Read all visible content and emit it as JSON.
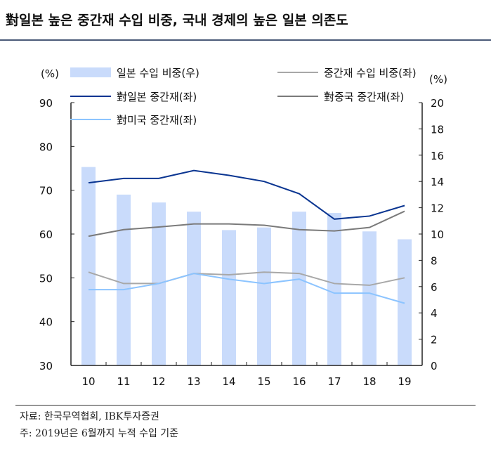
{
  "title": "對일본 높은 중간재 수입 비중, 국내 경제의 높은 일본 의존도",
  "notes": {
    "source": "자료: 한국무역협회, IBK투자증권",
    "footnote": "주: 2019년은 6월까지 누적 수입 기준"
  },
  "chart_data": {
    "type": "bar+line",
    "categories": [
      "10",
      "11",
      "12",
      "13",
      "14",
      "15",
      "16",
      "17",
      "18",
      "19"
    ],
    "left_axis": {
      "unit": "(%)",
      "range": [
        30,
        90
      ],
      "ticks": [
        30,
        40,
        50,
        60,
        70,
        80,
        90
      ]
    },
    "right_axis": {
      "unit": "(%)",
      "range": [
        0,
        20
      ],
      "ticks": [
        0,
        2,
        4,
        6,
        8,
        10,
        12,
        14,
        16,
        18,
        20
      ]
    },
    "series": [
      {
        "name": "일본 수입 비중(우)",
        "type": "bar",
        "axis": "right",
        "color": "#c9dbfb",
        "values": [
          15.1,
          13.0,
          12.4,
          11.7,
          10.3,
          10.5,
          11.7,
          11.6,
          10.2,
          9.6
        ]
      },
      {
        "name": "중간재 수입 비중(좌)",
        "type": "line",
        "axis": "left",
        "color": "#a8a8a8",
        "values": [
          51.3,
          48.7,
          48.7,
          51.0,
          50.7,
          51.3,
          51.0,
          48.7,
          48.3,
          50.0
        ]
      },
      {
        "name": "對일본 중간재(좌)",
        "type": "line",
        "axis": "left",
        "color": "#0a3591",
        "values": [
          71.7,
          72.7,
          72.7,
          74.5,
          73.4,
          72.0,
          69.2,
          63.4,
          64.1,
          66.5
        ]
      },
      {
        "name": "對중국 중간재(좌)",
        "type": "line",
        "axis": "left",
        "color": "#7a7a7a",
        "values": [
          59.5,
          61.0,
          61.6,
          62.3,
          62.3,
          62.0,
          61.0,
          60.7,
          61.5,
          65.2
        ]
      },
      {
        "name": "對미국 중간재(좌)",
        "type": "line",
        "axis": "left",
        "color": "#8cc4ff",
        "values": [
          47.3,
          47.3,
          48.7,
          51.0,
          49.7,
          48.7,
          49.7,
          46.5,
          46.5,
          44.2
        ]
      }
    ],
    "legend": "top"
  }
}
